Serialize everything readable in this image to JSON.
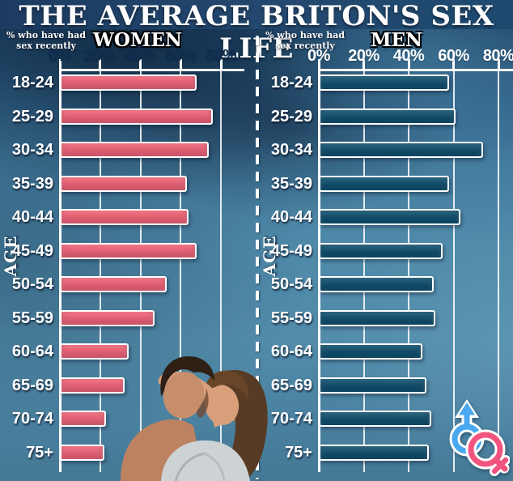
{
  "title": "THE AVERAGE BRITON'S SEX LIFE",
  "chart_data": {
    "type": "bar",
    "orientation": "horizontal",
    "title": "THE AVERAGE BRITON'S SEX LIFE",
    "value_note": "% who have had sex recently",
    "ylabel": "AGE",
    "categories": [
      "18-24",
      "25-29",
      "30-34",
      "35-39",
      "40-44",
      "45-49",
      "50-54",
      "55-59",
      "60-64",
      "65-69",
      "70-74",
      "75+"
    ],
    "x_ticks": [
      "0%",
      "20%",
      "40%",
      "60%",
      "80%"
    ],
    "xlim": [
      0,
      80
    ],
    "grid": true,
    "legend_position": "chart-headers",
    "series": [
      {
        "name": "WOMEN",
        "color": "#ef6477",
        "values": [
          68,
          76,
          74,
          63,
          64,
          68,
          53,
          47,
          34,
          32,
          23,
          22
        ]
      },
      {
        "name": "MEN",
        "color": "#11506d",
        "values": [
          58,
          61,
          73,
          58,
          63,
          55,
          51,
          52,
          46,
          48,
          50,
          49
        ]
      }
    ]
  },
  "charts": [
    {
      "header": "WOMEN",
      "note_line1": "% who have had",
      "note_line2": "sex recently",
      "age_label": "AGE",
      "tick_color": "#0f2d4f"
    },
    {
      "header": "MEN",
      "note_line1": "% who have had",
      "note_line2": "sex recently",
      "age_label": "AGE",
      "tick_color": "#ffffff"
    }
  ],
  "decorations": {
    "divider": "white-dashed-vertical-line",
    "couple_image": "embracing-couple-photo",
    "male_symbol_color": "#49a8ef",
    "female_symbol_color": "#f1547e",
    "bar_outline_color": "#ffffff",
    "title_band_color": "#21446c"
  }
}
